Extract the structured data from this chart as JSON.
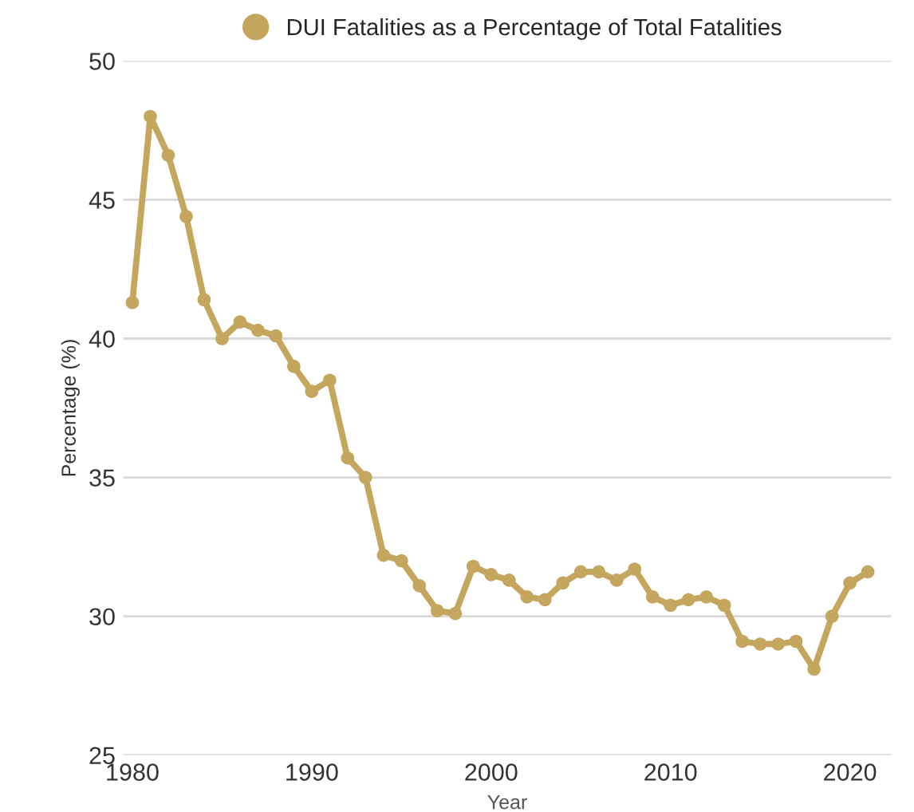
{
  "chart_data": {
    "type": "line",
    "xlabel": "Year",
    "ylabel": "Percentage (%)",
    "x": [
      1980,
      1981,
      1982,
      1983,
      1984,
      1985,
      1986,
      1987,
      1988,
      1989,
      1990,
      1991,
      1992,
      1993,
      1994,
      1995,
      1996,
      1997,
      1998,
      1999,
      2000,
      2001,
      2002,
      2003,
      2004,
      2005,
      2006,
      2007,
      2008,
      2009,
      2010,
      2011,
      2012,
      2013,
      2014,
      2015,
      2016,
      2017,
      2018,
      2019,
      2020,
      2021
    ],
    "series": [
      {
        "name": "DUI Fatalities as a Percentage of Total Fatalities",
        "color": "#c4a65e",
        "values": [
          41.3,
          48.0,
          46.6,
          44.4,
          41.4,
          40.0,
          40.6,
          40.3,
          40.1,
          39.0,
          38.1,
          38.5,
          35.7,
          35.0,
          32.2,
          32.0,
          31.1,
          30.2,
          30.1,
          31.8,
          31.5,
          31.3,
          30.7,
          30.6,
          31.2,
          31.6,
          31.6,
          31.3,
          31.7,
          30.7,
          30.4,
          30.6,
          30.7,
          30.4,
          29.1,
          29.0,
          29.0,
          29.1,
          28.1,
          30.0,
          31.2,
          31.6
        ]
      }
    ],
    "xlim": [
      1979.5,
      2022.3
    ],
    "xticks": [
      1980,
      1990,
      2000,
      2010,
      2020
    ],
    "ylim": [
      25,
      50
    ],
    "yticks": [
      25,
      30,
      35,
      40,
      45,
      50
    ],
    "grid": "y",
    "legend": "top",
    "marker": "circle",
    "line_style": "solid"
  }
}
